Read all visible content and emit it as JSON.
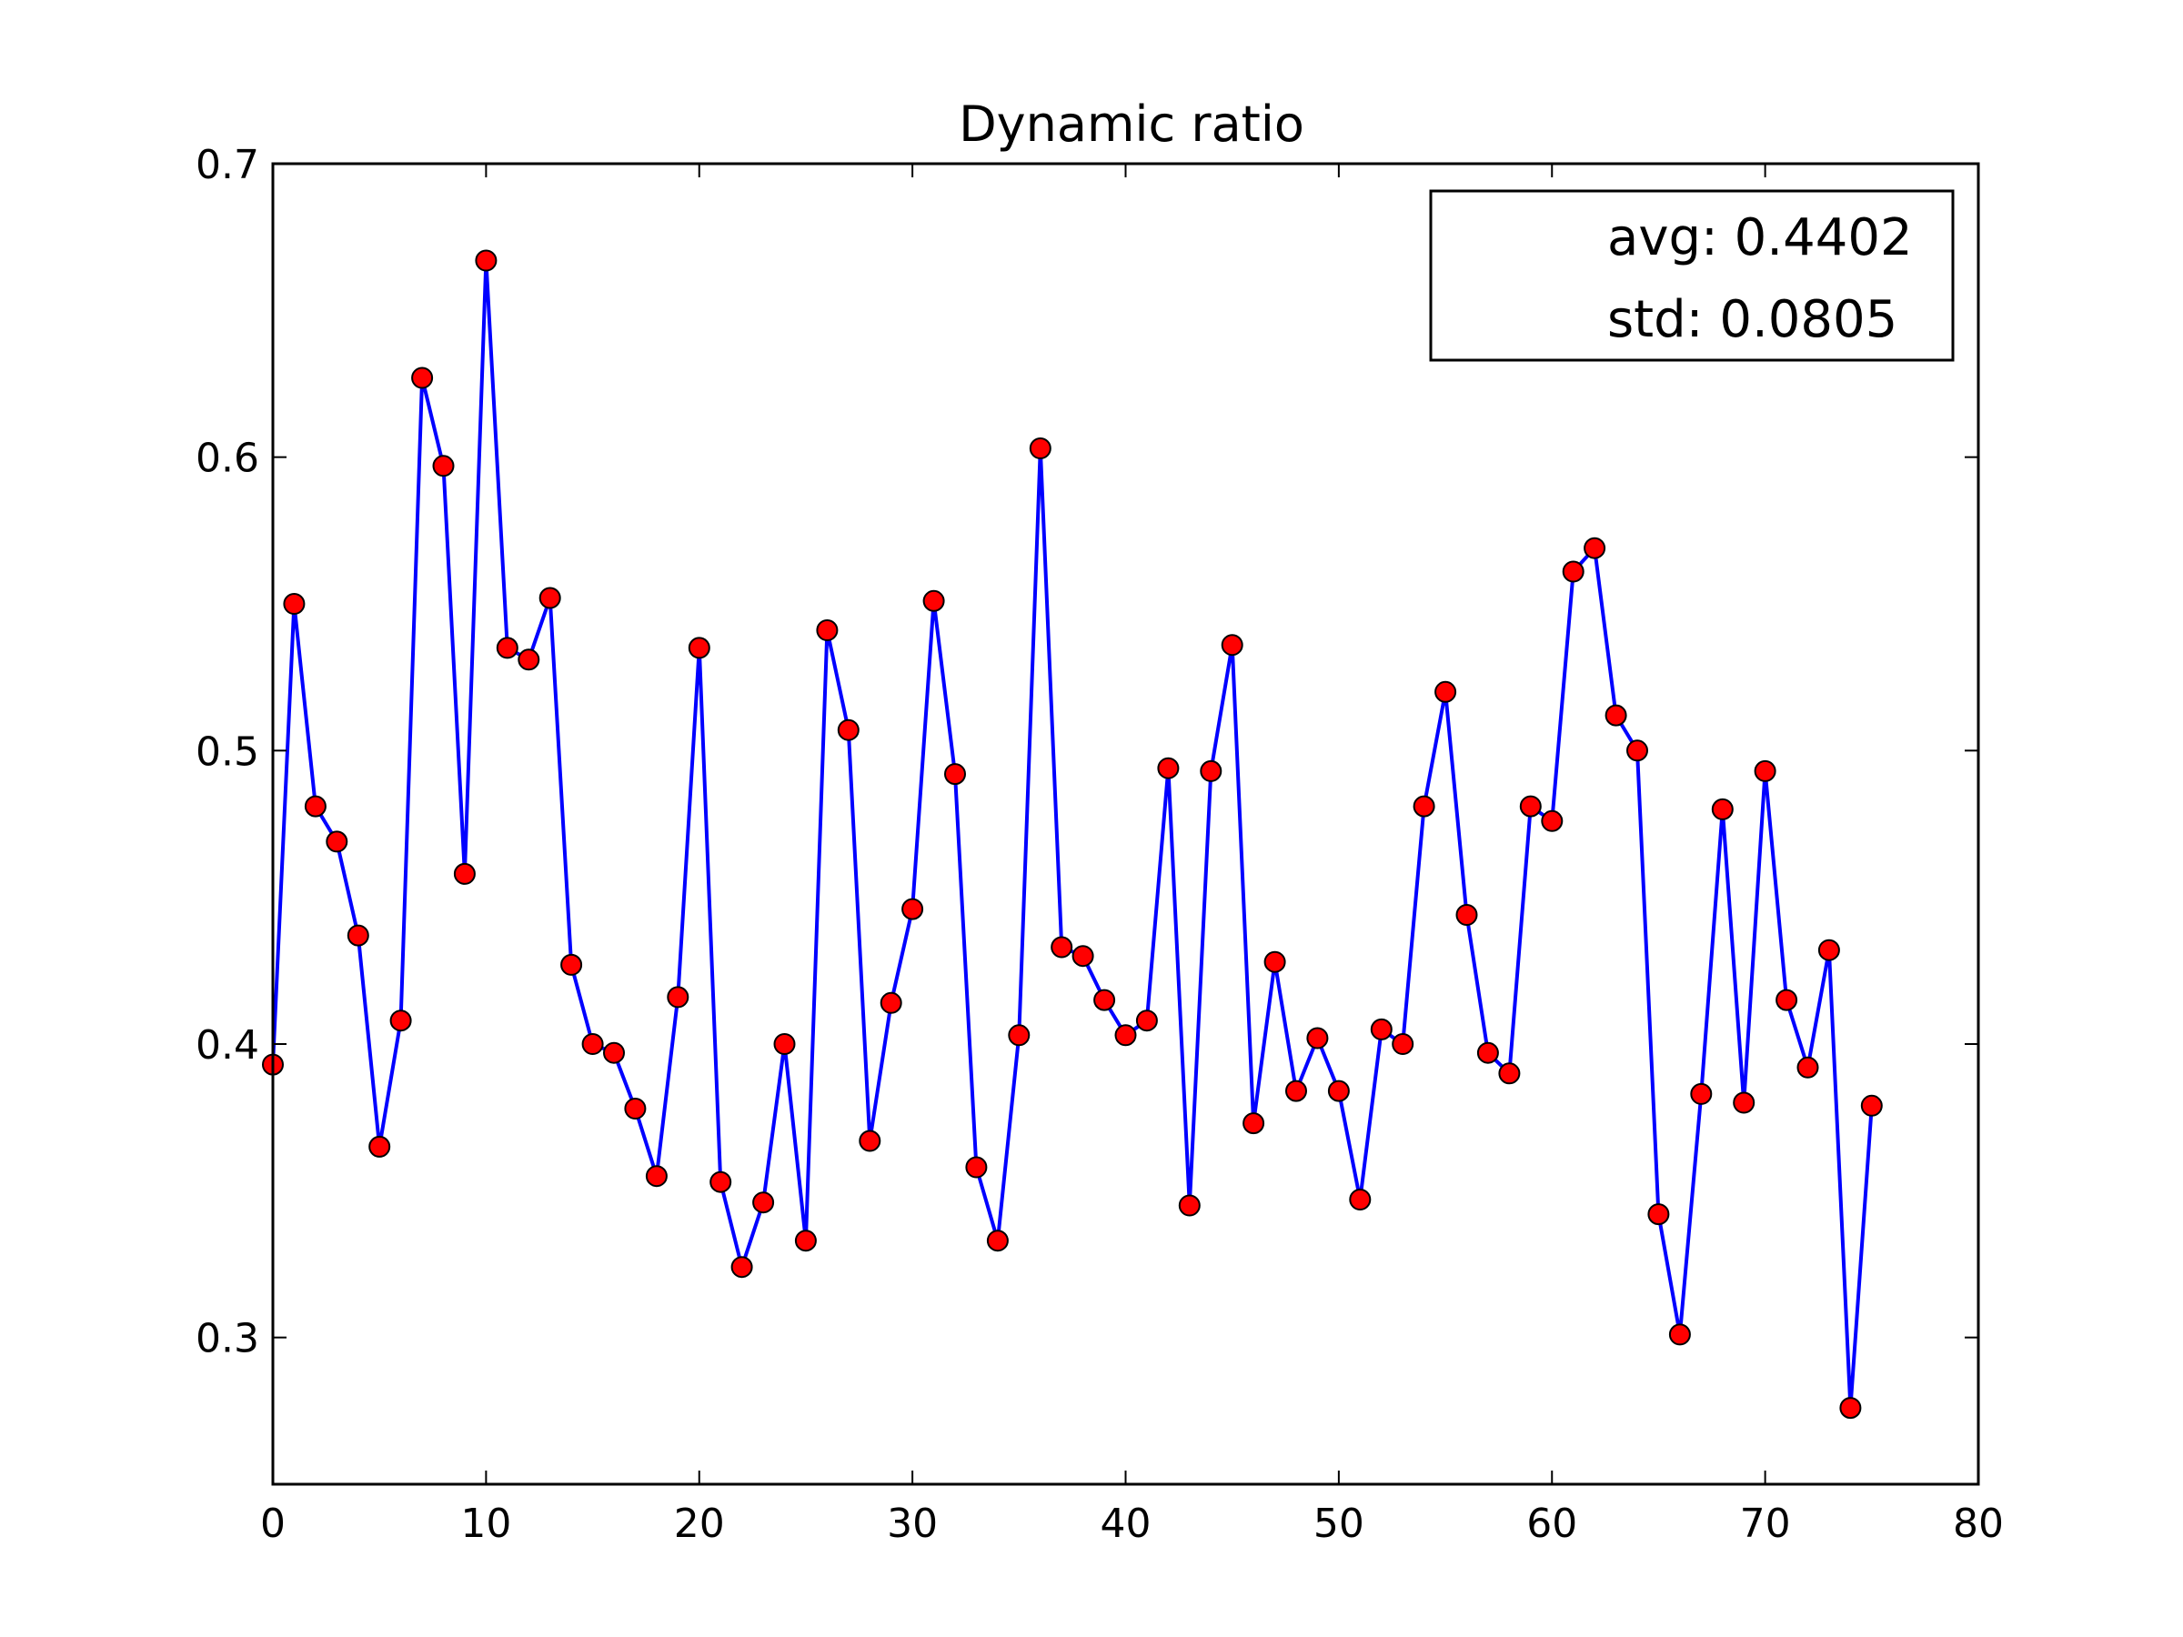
{
  "chart_data": {
    "type": "line",
    "title": "Dynamic ratio",
    "xlabel": "",
    "ylabel": "",
    "xlim": [
      0,
      80
    ],
    "ylim": [
      0.25,
      0.7
    ],
    "xticks": [
      0,
      10,
      20,
      30,
      40,
      50,
      60,
      70,
      80
    ],
    "xtick_labels": [
      "0",
      "10",
      "20",
      "30",
      "40",
      "50",
      "60",
      "70",
      "80"
    ],
    "yticks": [
      0.3,
      0.4,
      0.5,
      0.6,
      0.7
    ],
    "ytick_labels": [
      "0.3",
      "0.4",
      "0.5",
      "0.6",
      "0.7"
    ],
    "grid": false,
    "legend": "none",
    "annotation": {
      "placement": "top-right",
      "lines": [
        "avg: 0.4402",
        "std: 0.0805"
      ]
    },
    "series": [
      {
        "line_color": "#0000ff",
        "marker_color": "#ff0000",
        "marker_edge_color": "#000000",
        "x": [
          0,
          1,
          2,
          3,
          4,
          5,
          6,
          7,
          8,
          9,
          10,
          11,
          12,
          13,
          14,
          15,
          16,
          17,
          18,
          19,
          20,
          21,
          22,
          23,
          24,
          25,
          26,
          27,
          28,
          29,
          30,
          31,
          32,
          33,
          34,
          35,
          36,
          37,
          38,
          39,
          40,
          41,
          42,
          43,
          44,
          45,
          46,
          47,
          48,
          49,
          50,
          51,
          52,
          53,
          54,
          55,
          56,
          57,
          58,
          59,
          60,
          61,
          62,
          63,
          64,
          65,
          66,
          67,
          68,
          69,
          70,
          71,
          72,
          73,
          74,
          75
        ],
        "y": [
          0.393,
          0.55,
          0.481,
          0.469,
          0.437,
          0.365,
          0.408,
          0.627,
          0.597,
          0.458,
          0.667,
          0.535,
          0.531,
          0.552,
          0.427,
          0.4,
          0.397,
          0.378,
          0.355,
          0.416,
          0.535,
          0.353,
          0.324,
          0.346,
          0.4,
          0.333,
          0.541,
          0.507,
          0.367,
          0.414,
          0.446,
          0.551,
          0.492,
          0.358,
          0.333,
          0.403,
          0.603,
          0.433,
          0.43,
          0.415,
          0.403,
          0.408,
          0.494,
          0.345,
          0.493,
          0.536,
          0.373,
          0.428,
          0.384,
          0.402,
          0.384,
          0.347,
          0.405,
          0.4,
          0.481,
          0.52,
          0.444,
          0.397,
          0.39,
          0.481,
          0.476,
          0.561,
          0.569,
          0.512,
          0.5,
          0.342,
          0.301,
          0.383,
          0.48,
          0.38,
          0.493,
          0.415,
          0.392,
          0.432,
          0.276,
          0.379
        ]
      }
    ]
  }
}
